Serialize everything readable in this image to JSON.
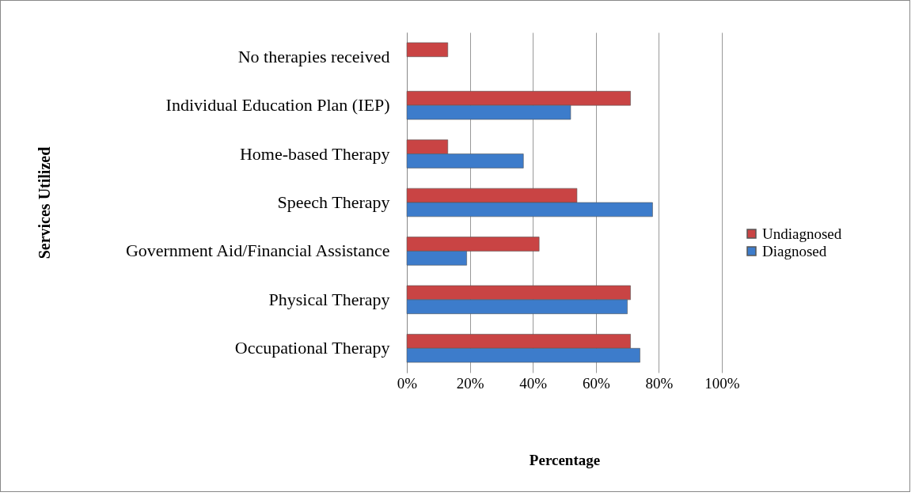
{
  "chart_data": {
    "type": "bar",
    "orientation": "horizontal",
    "xlabel": "Percentage",
    "ylabel": "Services Utilized",
    "categories": [
      "No therapies received",
      "Individual Education Plan (IEP)",
      "Home-based Therapy",
      "Speech Therapy",
      "Government Aid/Financial Assistance",
      "Physical Therapy",
      "Occupational Therapy"
    ],
    "series": [
      {
        "name": "Undiagnosed",
        "color": "#c94444",
        "values": [
          13,
          71,
          13,
          54,
          42,
          71,
          71
        ]
      },
      {
        "name": "Diagnosed",
        "color": "#3d7ccb",
        "values": [
          null,
          52,
          37,
          78,
          19,
          70,
          74
        ]
      }
    ],
    "xlim": [
      0,
      100
    ],
    "xticks": [
      {
        "value": 0,
        "label": "0%"
      },
      {
        "value": 20,
        "label": "20%"
      },
      {
        "value": 40,
        "label": "40%"
      },
      {
        "value": 60,
        "label": "60%"
      },
      {
        "value": 80,
        "label": "80%"
      },
      {
        "value": 100,
        "label": "100%"
      }
    ],
    "grid": "x",
    "legend": "right"
  }
}
